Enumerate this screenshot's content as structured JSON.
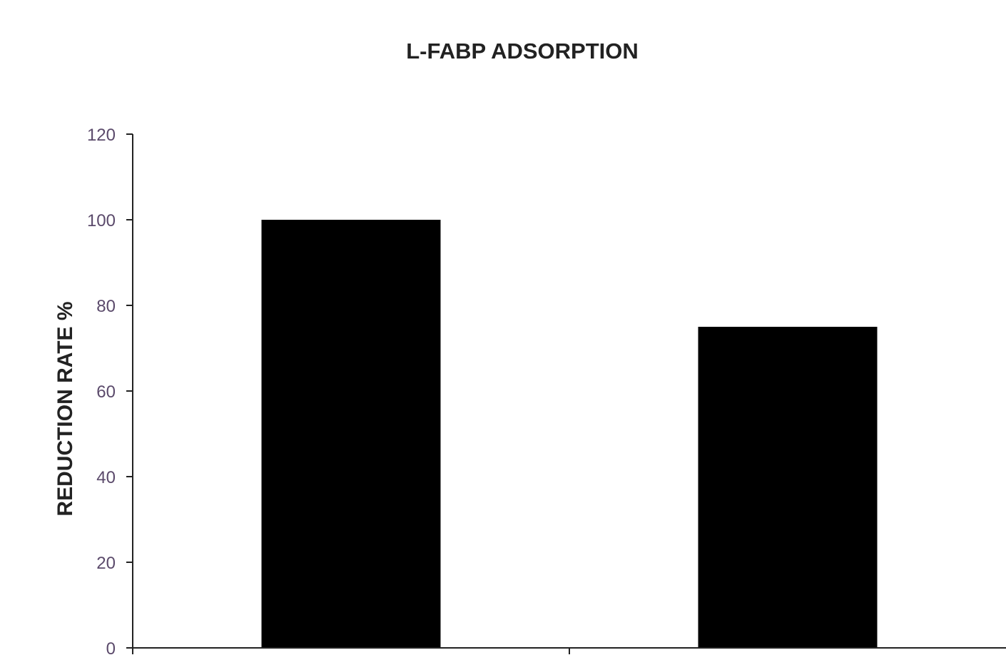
{
  "chart_data": {
    "type": "bar",
    "title": "L-FABP ADSORPTION",
    "xlabel": "",
    "ylabel": "REDUCTION RATE %",
    "categories": [
      "",
      ""
    ],
    "values": [
      100,
      75
    ],
    "ylim": [
      0,
      120
    ],
    "yticks": [
      "0",
      "20",
      "40",
      "60",
      "80",
      "100",
      "120"
    ],
    "grid": false,
    "legend": "none",
    "colors": {
      "bar": "#000000",
      "axis": "#222222",
      "tick_text": "#5b4a6b"
    }
  }
}
